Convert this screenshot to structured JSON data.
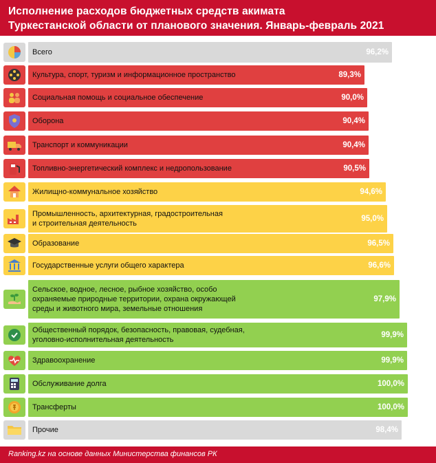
{
  "header": {
    "title_line1": "Исполнение расходов бюджетных средств акимата",
    "title_line2": "Туркестанской  области от планового значения.  Январь-февраль  2021"
  },
  "footer": {
    "source": "Ranking.kz на основе данных  Министерства финансов РК"
  },
  "colors": {
    "red": "#e04040",
    "yellow": "#fdd247",
    "green": "#92d050",
    "gray": "#d9d9d9",
    "brand": "#c8102e"
  },
  "chart_data": {
    "type": "bar",
    "orientation": "horizontal",
    "title": "Исполнение расходов бюджетных средств акимата Туркестанской  области от планового значения.  Январь-февраль  2021",
    "categories": [
      "Всего",
      "Культура, спорт, туризм и информационное пространство",
      "Социальная помощь и социальное обеспечение",
      "Оборона",
      "Транспорт и коммуникации",
      "Топливно-энергетический  комплекс и недропользование",
      "Жилищно-коммунальное хозяйство",
      "Промышленность, архитектурная, градостроительная\nи строительная деятельность",
      "Образование",
      "Государственные услуги общего характера",
      "Сельское, водное, лесное, рыбное хозяйство, особо\nохраняемые природные территории, охрана окружающей\nсреды и животного мира, земельные отношения",
      "Общественный порядок, безопасность, правовая, судебная,\nуголовно-исполнительная деятельность",
      "Здравоохранение",
      "Обслуживание долга",
      "Трансферты",
      "Прочие"
    ],
    "values": [
      96.2,
      89.3,
      90.0,
      90.4,
      90.4,
      90.5,
      94.6,
      95.0,
      96.5,
      96.6,
      97.9,
      99.9,
      99.9,
      100.0,
      100.0,
      98.4
    ],
    "value_labels": [
      "96,2%",
      "89,3%",
      "90,0%",
      "90,4%",
      "90,4%",
      "90,5%",
      "94,6%",
      "95,0%",
      "96,5%",
      "96,6%",
      "97,9%",
      "99,9%",
      "99,9%",
      "100,0%",
      "100,0%",
      "98,4%"
    ],
    "bar_colors": [
      "gray",
      "red",
      "red",
      "red",
      "red",
      "red",
      "yellow",
      "yellow",
      "yellow",
      "yellow",
      "green",
      "green",
      "green",
      "green",
      "green",
      "gray"
    ],
    "icons": [
      "pie-chart-icon",
      "film-reel-icon",
      "people-icon",
      "shield-icon",
      "truck-icon",
      "fuel-pump-icon",
      "house-icon",
      "factory-icon",
      "graduation-cap-icon",
      "government-building-icon",
      "sprout-hand-icon",
      "police-badge-icon",
      "heart-pulse-icon",
      "calculator-icon",
      "coin-transfer-icon",
      "folder-icon"
    ],
    "xlim": [
      0,
      100
    ],
    "grid": false,
    "legend": "none"
  }
}
